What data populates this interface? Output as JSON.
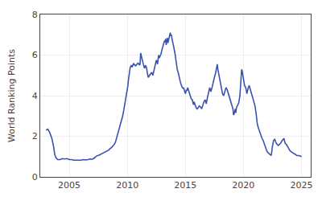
{
  "chart_data": {
    "type": "line",
    "ylabel": "World Ranking Points",
    "color": "#3a52b0",
    "grid": true,
    "xlim": [
      2002.5,
      2025.8
    ],
    "ylim": [
      0,
      8
    ],
    "xticks": [
      2005,
      2010,
      2015,
      2020,
      2025
    ],
    "yticks": [
      0,
      2,
      4,
      6,
      8
    ],
    "x": [
      2003.0,
      2003.15,
      2003.3,
      2003.5,
      2003.65,
      2003.75,
      2003.85,
      2004.0,
      2004.2,
      2004.4,
      2004.6,
      2004.8,
      2005.0,
      2005.2,
      2005.4,
      2005.6,
      2005.8,
      2006.0,
      2006.2,
      2006.4,
      2006.6,
      2006.8,
      2007.0,
      2007.1,
      2007.2,
      2007.3,
      2007.4,
      2007.5,
      2007.6,
      2007.7,
      2007.8,
      2007.9,
      2008.0,
      2008.1,
      2008.2,
      2008.3,
      2008.4,
      2008.5,
      2008.6,
      2008.7,
      2008.8,
      2008.9,
      2009.0,
      2009.1,
      2009.2,
      2009.3,
      2009.4,
      2009.5,
      2009.6,
      2009.7,
      2009.8,
      2009.9,
      2010.0,
      2010.05,
      2010.1,
      2010.15,
      2010.2,
      2010.25,
      2010.3,
      2010.35,
      2010.4,
      2010.45,
      2010.5,
      2010.55,
      2010.6,
      2010.65,
      2010.7,
      2010.75,
      2010.8,
      2010.85,
      2010.9,
      2010.95,
      2011.0,
      2011.05,
      2011.1,
      2011.15,
      2011.2,
      2011.25,
      2011.3,
      2011.35,
      2011.4,
      2011.45,
      2011.5,
      2011.55,
      2011.6,
      2011.65,
      2011.7,
      2011.75,
      2011.8,
      2011.85,
      2011.9,
      2012.0,
      2012.1,
      2012.2,
      2012.3,
      2012.4,
      2012.5,
      2012.6,
      2012.65,
      2012.7,
      2012.75,
      2012.8,
      2012.9,
      2013.0,
      2013.1,
      2013.2,
      2013.25,
      2013.3,
      2013.35,
      2013.4,
      2013.45,
      2013.5,
      2013.55,
      2013.6,
      2013.65,
      2013.7,
      2013.75,
      2013.8,
      2013.85,
      2013.9,
      2014.0,
      2014.1,
      2014.15,
      2014.2,
      2014.3,
      2014.4,
      2014.5,
      2014.6,
      2014.7,
      2014.8,
      2014.85,
      2014.9,
      2015.0,
      2015.1,
      2015.15,
      2015.2,
      2015.3,
      2015.4,
      2015.5,
      2015.6,
      2015.65,
      2015.7,
      2015.75,
      2015.8,
      2015.9,
      2016.0,
      2016.1,
      2016.2,
      2016.3,
      2016.4,
      2016.5,
      2016.6,
      2016.7,
      2016.8,
      2016.9,
      2017.0,
      2017.1,
      2017.15,
      2017.2,
      2017.3,
      2017.4,
      2017.5,
      2017.6,
      2017.7,
      2017.75,
      2017.8,
      2017.9,
      2018.0,
      2018.1,
      2018.15,
      2018.2,
      2018.3,
      2018.4,
      2018.5,
      2018.6,
      2018.7,
      2018.8,
      2018.9,
      2019.0,
      2019.1,
      2019.15,
      2019.2,
      2019.3,
      2019.35,
      2019.4,
      2019.5,
      2019.6,
      2019.7,
      2019.75,
      2019.8,
      2019.85,
      2019.9,
      2020.0,
      2020.1,
      2020.2,
      2020.3,
      2020.4,
      2020.5,
      2020.6,
      2020.7,
      2020.75,
      2020.8,
      2020.9,
      2021.0,
      2021.1,
      2021.2,
      2021.3,
      2021.4,
      2021.5,
      2021.6,
      2021.7,
      2021.8,
      2021.9,
      2022.0,
      2022.1,
      2022.2,
      2022.3,
      2022.4,
      2022.5,
      2022.55,
      2022.6,
      2022.7,
      2022.75,
      2022.8,
      2022.9,
      2023.0,
      2023.1,
      2023.2,
      2023.3,
      2023.4,
      2023.5,
      2023.55,
      2023.6,
      2023.7,
      2023.8,
      2023.9,
      2024.0,
      2024.2,
      2024.4,
      2024.5,
      2024.6,
      2024.8,
      2025.0
    ],
    "values": [
      2.3,
      2.35,
      2.2,
      1.9,
      1.5,
      1.1,
      0.95,
      0.85,
      0.85,
      0.9,
      0.88,
      0.9,
      0.85,
      0.85,
      0.82,
      0.82,
      0.8,
      0.82,
      0.85,
      0.83,
      0.85,
      0.88,
      0.87,
      0.9,
      0.95,
      1.0,
      1.05,
      1.05,
      1.08,
      1.1,
      1.12,
      1.15,
      1.18,
      1.2,
      1.25,
      1.28,
      1.32,
      1.38,
      1.42,
      1.48,
      1.55,
      1.62,
      1.75,
      1.95,
      2.15,
      2.3,
      2.5,
      2.75,
      3.0,
      3.3,
      3.6,
      3.9,
      4.2,
      4.5,
      4.8,
      5.1,
      5.3,
      5.4,
      5.45,
      5.5,
      5.4,
      5.5,
      5.55,
      5.6,
      5.5,
      5.55,
      5.45,
      5.5,
      5.5,
      5.55,
      5.6,
      5.55,
      5.6,
      5.5,
      5.55,
      6.1,
      5.95,
      5.8,
      5.7,
      5.55,
      5.5,
      5.4,
      5.35,
      5.5,
      5.45,
      5.4,
      5.2,
      5.0,
      4.9,
      4.95,
      5.0,
      5.1,
      5.15,
      5.0,
      5.2,
      5.5,
      5.75,
      5.55,
      5.8,
      6.0,
      5.85,
      5.9,
      6.05,
      6.3,
      6.5,
      6.7,
      6.65,
      6.8,
      6.5,
      6.8,
      6.85,
      6.6,
      6.75,
      6.9,
      7.05,
      7.1,
      6.95,
      7.0,
      6.8,
      6.6,
      6.4,
      6.1,
      5.85,
      5.6,
      5.3,
      5.1,
      4.8,
      4.6,
      4.45,
      4.35,
      4.4,
      4.3,
      4.1,
      4.3,
      4.25,
      4.4,
      4.2,
      4.0,
      3.85,
      3.8,
      3.7,
      3.55,
      3.7,
      3.6,
      3.45,
      3.35,
      3.4,
      3.5,
      3.45,
      3.35,
      3.55,
      3.7,
      3.8,
      3.6,
      3.9,
      4.2,
      4.4,
      4.3,
      4.2,
      4.4,
      4.7,
      4.9,
      5.1,
      5.4,
      5.55,
      5.3,
      5.0,
      4.7,
      4.5,
      4.2,
      4.1,
      4.0,
      4.2,
      4.4,
      4.3,
      4.1,
      3.9,
      3.7,
      3.55,
      3.35,
      3.05,
      3.1,
      3.35,
      3.15,
      3.4,
      3.5,
      3.65,
      4.0,
      4.4,
      5.0,
      5.3,
      5.2,
      4.8,
      4.5,
      4.4,
      4.1,
      4.35,
      4.5,
      4.3,
      4.1,
      4.0,
      3.85,
      3.7,
      3.5,
      3.1,
      2.6,
      2.4,
      2.2,
      2.1,
      1.9,
      1.8,
      1.6,
      1.45,
      1.3,
      1.2,
      1.15,
      1.1,
      1.05,
      1.5,
      1.7,
      1.8,
      1.85,
      1.75,
      1.7,
      1.6,
      1.55,
      1.6,
      1.65,
      1.75,
      1.85,
      1.9,
      1.75,
      1.65,
      1.6,
      1.5,
      1.4,
      1.3,
      1.2,
      1.15,
      1.1,
      1.05,
      1.05,
      1.0
    ]
  }
}
